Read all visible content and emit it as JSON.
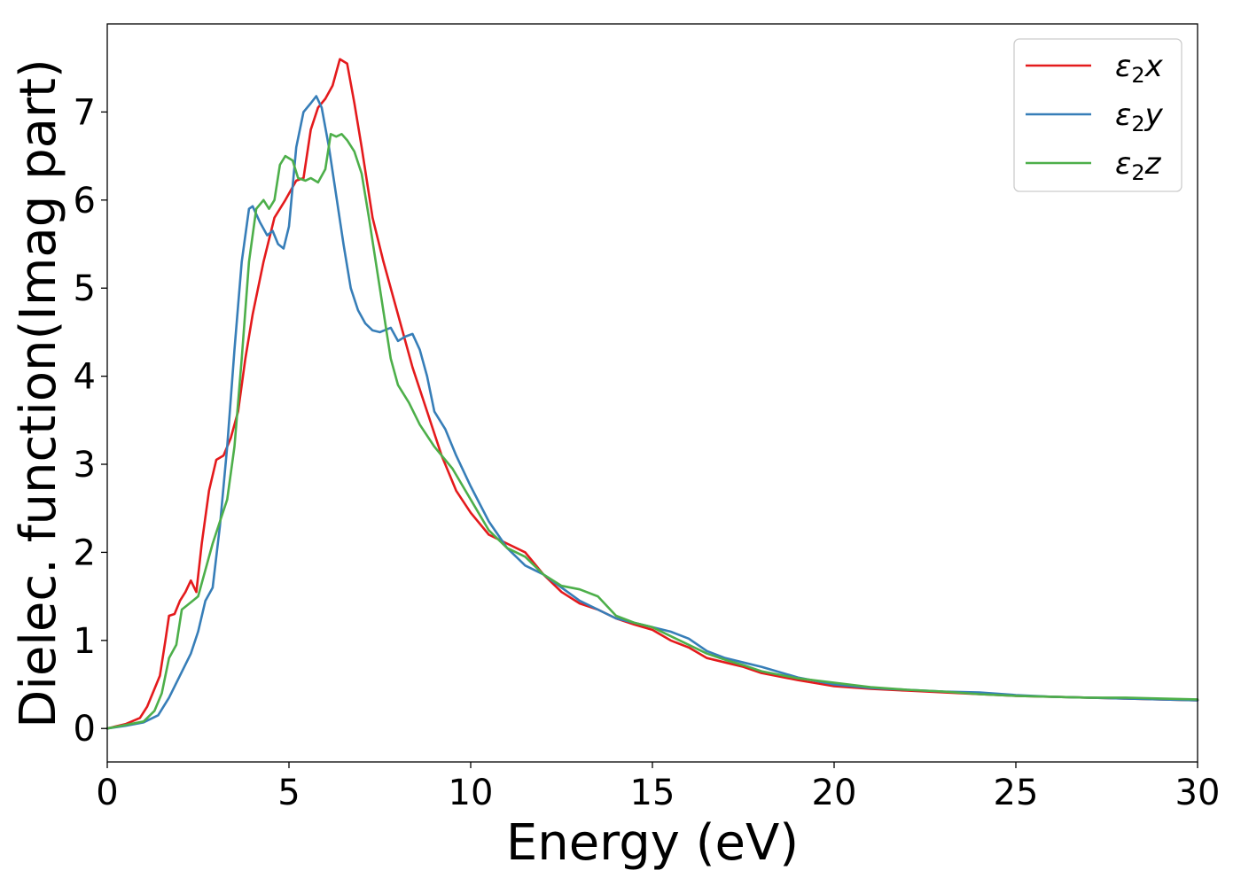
{
  "chart_data": {
    "type": "line",
    "title": "",
    "xlabel": "Energy (eV)",
    "ylabel": "Dielec. function(Imag part)",
    "xlim": [
      0,
      30
    ],
    "ylim": [
      -0.38,
      8.0
    ],
    "xticks": [
      0,
      5,
      10,
      15,
      20,
      25,
      30
    ],
    "yticks": [
      0,
      1,
      2,
      3,
      4,
      5,
      6,
      7
    ],
    "grid": false,
    "legend_position": "top-right",
    "series": [
      {
        "name": "ε2x",
        "legend_base": "ε",
        "legend_sub": "2",
        "legend_var": "x",
        "color": "#e41a1c",
        "x": [
          0,
          0.5,
          0.9,
          1.1,
          1.3,
          1.45,
          1.6,
          1.7,
          1.85,
          2.0,
          2.15,
          2.3,
          2.45,
          2.6,
          2.8,
          3.0,
          3.2,
          3.4,
          3.6,
          3.8,
          4.0,
          4.3,
          4.6,
          4.9,
          5.2,
          5.4,
          5.6,
          5.8,
          6.0,
          6.2,
          6.4,
          6.6,
          6.8,
          7.0,
          7.3,
          7.6,
          8.0,
          8.4,
          8.8,
          9.2,
          9.6,
          10.0,
          10.5,
          11.0,
          11.5,
          12.0,
          12.5,
          13.0,
          13.5,
          14.0,
          14.5,
          15.0,
          15.5,
          16.0,
          16.5,
          17.0,
          17.5,
          18.0,
          19.0,
          20.0,
          21.0,
          22.0,
          23.0,
          24.0,
          25.0,
          26.0,
          27.0,
          28.0,
          29.0,
          30.0
        ],
        "y": [
          0.0,
          0.05,
          0.12,
          0.25,
          0.45,
          0.6,
          1.0,
          1.28,
          1.3,
          1.45,
          1.55,
          1.68,
          1.55,
          2.1,
          2.7,
          3.05,
          3.1,
          3.3,
          3.6,
          4.2,
          4.7,
          5.3,
          5.8,
          6.0,
          6.22,
          6.25,
          6.8,
          7.05,
          7.15,
          7.3,
          7.6,
          7.55,
          7.1,
          6.6,
          5.8,
          5.3,
          4.7,
          4.1,
          3.6,
          3.1,
          2.7,
          2.45,
          2.2,
          2.1,
          2.0,
          1.75,
          1.55,
          1.42,
          1.35,
          1.25,
          1.18,
          1.12,
          1.0,
          0.92,
          0.8,
          0.75,
          0.7,
          0.63,
          0.55,
          0.48,
          0.45,
          0.43,
          0.41,
          0.39,
          0.37,
          0.36,
          0.35,
          0.34,
          0.33,
          0.32
        ]
      },
      {
        "name": "ε2y",
        "legend_base": "ε",
        "legend_sub": "2",
        "legend_var": "y",
        "color": "#377eb8",
        "x": [
          0,
          0.5,
          1.0,
          1.4,
          1.7,
          2.0,
          2.3,
          2.5,
          2.7,
          2.9,
          3.1,
          3.3,
          3.5,
          3.7,
          3.9,
          4.0,
          4.2,
          4.4,
          4.55,
          4.7,
          4.85,
          5.0,
          5.2,
          5.4,
          5.6,
          5.75,
          5.9,
          6.1,
          6.3,
          6.5,
          6.7,
          6.9,
          7.1,
          7.3,
          7.5,
          7.8,
          8.0,
          8.2,
          8.4,
          8.6,
          8.8,
          9.0,
          9.3,
          9.6,
          10.0,
          10.5,
          11.0,
          11.5,
          12.0,
          12.5,
          13.0,
          13.5,
          14.0,
          14.5,
          15.0,
          15.5,
          16.0,
          16.5,
          17.0,
          17.5,
          18.0,
          19.0,
          20.0,
          21.0,
          22.0,
          23.0,
          24.0,
          25.0,
          26.0,
          27.0,
          28.0,
          29.0,
          30.0
        ],
        "y": [
          0.0,
          0.03,
          0.07,
          0.15,
          0.35,
          0.6,
          0.85,
          1.1,
          1.45,
          1.6,
          2.3,
          3.2,
          4.3,
          5.3,
          5.9,
          5.93,
          5.75,
          5.6,
          5.65,
          5.5,
          5.45,
          5.7,
          6.6,
          7.0,
          7.1,
          7.18,
          7.05,
          6.6,
          6.05,
          5.5,
          5.0,
          4.75,
          4.6,
          4.52,
          4.5,
          4.55,
          4.4,
          4.45,
          4.48,
          4.3,
          4.0,
          3.6,
          3.4,
          3.1,
          2.75,
          2.35,
          2.05,
          1.85,
          1.75,
          1.6,
          1.45,
          1.35,
          1.25,
          1.2,
          1.15,
          1.1,
          1.02,
          0.88,
          0.8,
          0.75,
          0.7,
          0.58,
          0.5,
          0.46,
          0.44,
          0.42,
          0.41,
          0.38,
          0.36,
          0.35,
          0.34,
          0.33,
          0.32
        ]
      },
      {
        "name": "ε2z",
        "legend_base": "ε",
        "legend_sub": "2",
        "legend_var": "z",
        "color": "#4daf4a",
        "x": [
          0,
          0.5,
          1.0,
          1.3,
          1.5,
          1.7,
          1.9,
          2.05,
          2.2,
          2.35,
          2.5,
          2.7,
          2.9,
          3.1,
          3.3,
          3.5,
          3.7,
          3.9,
          4.1,
          4.3,
          4.45,
          4.6,
          4.75,
          4.9,
          5.1,
          5.25,
          5.45,
          5.6,
          5.8,
          6.0,
          6.15,
          6.3,
          6.45,
          6.6,
          6.8,
          7.0,
          7.2,
          7.5,
          7.8,
          8.0,
          8.3,
          8.6,
          9.0,
          9.5,
          10.0,
          10.5,
          11.0,
          11.5,
          12.0,
          12.5,
          13.0,
          13.5,
          14.0,
          14.5,
          15.0,
          15.5,
          16.0,
          16.5,
          17.0,
          17.5,
          18.0,
          19.0,
          20.0,
          21.0,
          22.0,
          23.0,
          24.0,
          25.0,
          26.0,
          27.0,
          28.0,
          29.0,
          30.0
        ],
        "y": [
          0.0,
          0.04,
          0.08,
          0.2,
          0.4,
          0.8,
          0.95,
          1.35,
          1.4,
          1.45,
          1.5,
          1.8,
          2.1,
          2.35,
          2.6,
          3.2,
          4.2,
          5.3,
          5.9,
          6.0,
          5.9,
          6.0,
          6.4,
          6.5,
          6.45,
          6.25,
          6.22,
          6.25,
          6.2,
          6.35,
          6.75,
          6.72,
          6.75,
          6.68,
          6.55,
          6.3,
          5.8,
          5.0,
          4.2,
          3.9,
          3.7,
          3.45,
          3.2,
          2.95,
          2.6,
          2.25,
          2.05,
          1.95,
          1.75,
          1.62,
          1.58,
          1.5,
          1.28,
          1.2,
          1.15,
          1.05,
          0.95,
          0.85,
          0.78,
          0.72,
          0.65,
          0.57,
          0.52,
          0.47,
          0.44,
          0.42,
          0.39,
          0.37,
          0.36,
          0.35,
          0.35,
          0.34,
          0.33
        ]
      }
    ]
  }
}
